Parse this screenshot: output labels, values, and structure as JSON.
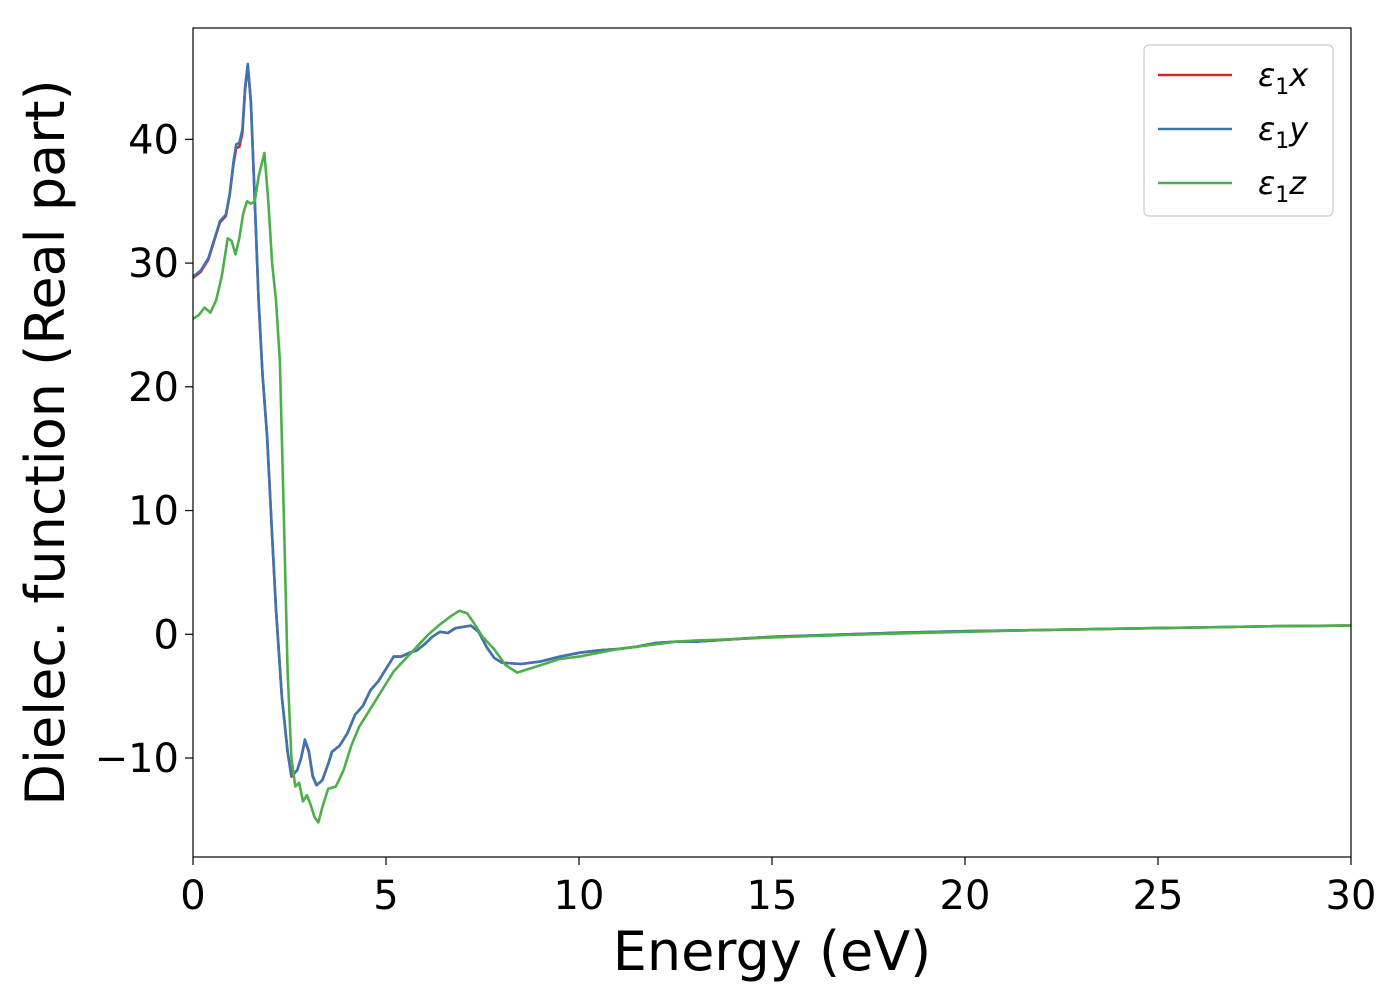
{
  "chart_data": {
    "type": "line",
    "title": "",
    "xlabel": "Energy (eV)",
    "ylabel": "Dielec. function (Real part)",
    "xlim": [
      0,
      30
    ],
    "ylim": [
      -18,
      49
    ],
    "xticks": [
      0,
      5,
      10,
      15,
      20,
      25,
      30
    ],
    "xtick_labels": [
      "0",
      "5",
      "10",
      "15",
      "20",
      "25",
      "30"
    ],
    "yticks": [
      -10,
      0,
      10,
      20,
      30,
      40
    ],
    "ytick_labels": [
      "−10",
      "0",
      "10",
      "20",
      "30",
      "40"
    ],
    "grid": false,
    "legend": {
      "position": "top-right",
      "entries": [
        {
          "prefix": "ε",
          "sub": "1",
          "suffix": "x"
        },
        {
          "prefix": "ε",
          "sub": "1",
          "suffix": "y"
        },
        {
          "prefix": "ε",
          "sub": "1",
          "suffix": "z"
        }
      ]
    },
    "series": [
      {
        "name": "ε1x",
        "color": "#d62728",
        "points": [
          [
            0,
            28.8
          ],
          [
            0.2,
            29.3
          ],
          [
            0.4,
            30.3
          ],
          [
            0.55,
            31.8
          ],
          [
            0.7,
            33.3
          ],
          [
            0.85,
            33.8
          ],
          [
            0.95,
            35.5
          ],
          [
            1.05,
            38.0
          ],
          [
            1.12,
            39.3
          ],
          [
            1.2,
            39.4
          ],
          [
            1.28,
            40.5
          ],
          [
            1.35,
            44.0
          ],
          [
            1.42,
            46.0
          ],
          [
            1.5,
            43.0
          ],
          [
            1.6,
            35.0
          ],
          [
            1.7,
            27.0
          ],
          [
            1.8,
            21.0
          ],
          [
            1.92,
            16.0
          ],
          [
            2.05,
            8.0
          ],
          [
            2.15,
            2.0
          ],
          [
            2.3,
            -5.0
          ],
          [
            2.45,
            -9.5
          ],
          [
            2.55,
            -11.5
          ],
          [
            2.7,
            -11.0
          ],
          [
            2.8,
            -10.0
          ],
          [
            2.9,
            -8.6
          ],
          [
            3.0,
            -9.5
          ],
          [
            3.1,
            -11.5
          ],
          [
            3.2,
            -12.2
          ],
          [
            3.35,
            -11.8
          ],
          [
            3.5,
            -10.5
          ],
          [
            3.6,
            -9.5
          ],
          [
            3.8,
            -9.0
          ],
          [
            4.0,
            -8.0
          ],
          [
            4.2,
            -6.5
          ],
          [
            4.4,
            -5.8
          ],
          [
            4.6,
            -4.5
          ],
          [
            4.8,
            -3.8
          ],
          [
            5.0,
            -2.8
          ],
          [
            5.2,
            -1.8
          ],
          [
            5.4,
            -1.8
          ],
          [
            5.6,
            -1.5
          ],
          [
            5.8,
            -1.3
          ],
          [
            6.0,
            -0.8
          ],
          [
            6.2,
            -0.2
          ],
          [
            6.4,
            0.2
          ],
          [
            6.6,
            0.1
          ],
          [
            6.8,
            0.5
          ],
          [
            7.0,
            0.6
          ],
          [
            7.2,
            0.7
          ],
          [
            7.4,
            0.2
          ],
          [
            7.6,
            -1.0
          ],
          [
            7.8,
            -1.9
          ],
          [
            8.0,
            -2.3
          ],
          [
            8.5,
            -2.4
          ],
          [
            9.0,
            -2.2
          ],
          [
            9.5,
            -1.8
          ],
          [
            10.0,
            -1.5
          ],
          [
            10.5,
            -1.3
          ],
          [
            11.0,
            -1.2
          ],
          [
            11.5,
            -1.0
          ],
          [
            12.0,
            -0.7
          ],
          [
            12.5,
            -0.6
          ],
          [
            13.0,
            -0.6
          ],
          [
            14.0,
            -0.4
          ],
          [
            15.0,
            -0.2
          ],
          [
            16.0,
            -0.1
          ],
          [
            18.0,
            0.1
          ],
          [
            20.0,
            0.25
          ],
          [
            22.0,
            0.35
          ],
          [
            24.0,
            0.45
          ],
          [
            26.0,
            0.55
          ],
          [
            28.0,
            0.65
          ],
          [
            30.0,
            0.7
          ]
        ]
      },
      {
        "name": "ε1y",
        "color": "#3b76b0",
        "points": [
          [
            0,
            28.9
          ],
          [
            0.2,
            29.4
          ],
          [
            0.4,
            30.4
          ],
          [
            0.55,
            31.9
          ],
          [
            0.7,
            33.4
          ],
          [
            0.85,
            33.9
          ],
          [
            0.95,
            35.6
          ],
          [
            1.05,
            38.2
          ],
          [
            1.12,
            39.6
          ],
          [
            1.2,
            39.7
          ],
          [
            1.28,
            40.8
          ],
          [
            1.35,
            44.2
          ],
          [
            1.42,
            46.1
          ],
          [
            1.5,
            43.0
          ],
          [
            1.6,
            35.0
          ],
          [
            1.7,
            27.0
          ],
          [
            1.8,
            21.0
          ],
          [
            1.92,
            16.0
          ],
          [
            2.05,
            8.0
          ],
          [
            2.15,
            2.0
          ],
          [
            2.3,
            -5.0
          ],
          [
            2.45,
            -9.5
          ],
          [
            2.55,
            -11.4
          ],
          [
            2.7,
            -11.0
          ],
          [
            2.8,
            -10.0
          ],
          [
            2.9,
            -8.5
          ],
          [
            3.0,
            -9.4
          ],
          [
            3.1,
            -11.4
          ],
          [
            3.2,
            -12.2
          ],
          [
            3.35,
            -11.8
          ],
          [
            3.5,
            -10.5
          ],
          [
            3.6,
            -9.5
          ],
          [
            3.8,
            -9.0
          ],
          [
            4.0,
            -8.0
          ],
          [
            4.2,
            -6.5
          ],
          [
            4.4,
            -5.8
          ],
          [
            4.6,
            -4.5
          ],
          [
            4.8,
            -3.8
          ],
          [
            5.0,
            -2.8
          ],
          [
            5.2,
            -1.8
          ],
          [
            5.4,
            -1.8
          ],
          [
            5.6,
            -1.5
          ],
          [
            5.8,
            -1.3
          ],
          [
            6.0,
            -0.8
          ],
          [
            6.2,
            -0.2
          ],
          [
            6.4,
            0.2
          ],
          [
            6.6,
            0.1
          ],
          [
            6.8,
            0.5
          ],
          [
            7.0,
            0.6
          ],
          [
            7.2,
            0.7
          ],
          [
            7.4,
            0.2
          ],
          [
            7.6,
            -1.0
          ],
          [
            7.8,
            -1.9
          ],
          [
            8.0,
            -2.3
          ],
          [
            8.5,
            -2.4
          ],
          [
            9.0,
            -2.2
          ],
          [
            9.5,
            -1.8
          ],
          [
            10.0,
            -1.5
          ],
          [
            10.5,
            -1.3
          ],
          [
            11.0,
            -1.2
          ],
          [
            11.5,
            -1.0
          ],
          [
            12.0,
            -0.7
          ],
          [
            12.5,
            -0.6
          ],
          [
            13.0,
            -0.6
          ],
          [
            14.0,
            -0.4
          ],
          [
            15.0,
            -0.2
          ],
          [
            16.0,
            -0.1
          ],
          [
            18.0,
            0.1
          ],
          [
            20.0,
            0.25
          ],
          [
            22.0,
            0.35
          ],
          [
            24.0,
            0.45
          ],
          [
            26.0,
            0.55
          ],
          [
            28.0,
            0.65
          ],
          [
            30.0,
            0.7
          ]
        ]
      },
      {
        "name": "ε1z",
        "color": "#4daf4a",
        "points": [
          [
            0,
            25.5
          ],
          [
            0.15,
            25.8
          ],
          [
            0.3,
            26.4
          ],
          [
            0.45,
            26.0
          ],
          [
            0.6,
            27.0
          ],
          [
            0.75,
            29.0
          ],
          [
            0.9,
            32.0
          ],
          [
            1.0,
            31.8
          ],
          [
            1.1,
            30.7
          ],
          [
            1.2,
            32.0
          ],
          [
            1.3,
            34.0
          ],
          [
            1.4,
            35.0
          ],
          [
            1.5,
            34.8
          ],
          [
            1.6,
            35.0
          ],
          [
            1.7,
            37.0
          ],
          [
            1.85,
            38.9
          ],
          [
            1.95,
            35.0
          ],
          [
            2.05,
            30.0
          ],
          [
            2.15,
            27.0
          ],
          [
            2.25,
            22.0
          ],
          [
            2.35,
            10.0
          ],
          [
            2.45,
            -3.0
          ],
          [
            2.55,
            -10.0
          ],
          [
            2.65,
            -12.3
          ],
          [
            2.75,
            -12.0
          ],
          [
            2.85,
            -13.5
          ],
          [
            2.95,
            -13.0
          ],
          [
            3.05,
            -13.8
          ],
          [
            3.15,
            -14.8
          ],
          [
            3.25,
            -15.2
          ],
          [
            3.35,
            -14.0
          ],
          [
            3.5,
            -12.5
          ],
          [
            3.7,
            -12.3
          ],
          [
            3.9,
            -11.0
          ],
          [
            4.1,
            -9.0
          ],
          [
            4.3,
            -7.5
          ],
          [
            4.6,
            -6.0
          ],
          [
            4.9,
            -4.5
          ],
          [
            5.2,
            -3.0
          ],
          [
            5.5,
            -2.0
          ],
          [
            5.8,
            -1.0
          ],
          [
            6.1,
            0.0
          ],
          [
            6.4,
            0.8
          ],
          [
            6.7,
            1.5
          ],
          [
            6.9,
            1.9
          ],
          [
            7.1,
            1.7
          ],
          [
            7.3,
            0.8
          ],
          [
            7.5,
            -0.2
          ],
          [
            7.8,
            -1.2
          ],
          [
            8.1,
            -2.5
          ],
          [
            8.4,
            -3.1
          ],
          [
            8.7,
            -2.8
          ],
          [
            9.0,
            -2.5
          ],
          [
            9.5,
            -2.0
          ],
          [
            10.0,
            -1.8
          ],
          [
            10.5,
            -1.5
          ],
          [
            11.0,
            -1.2
          ],
          [
            11.5,
            -1.0
          ],
          [
            12.0,
            -0.8
          ],
          [
            12.5,
            -0.6
          ],
          [
            13.0,
            -0.5
          ],
          [
            14.0,
            -0.4
          ],
          [
            15.0,
            -0.25
          ],
          [
            16.0,
            -0.15
          ],
          [
            18.0,
            0.05
          ],
          [
            20.0,
            0.2
          ],
          [
            22.0,
            0.35
          ],
          [
            24.0,
            0.45
          ],
          [
            26.0,
            0.55
          ],
          [
            28.0,
            0.65
          ],
          [
            30.0,
            0.7
          ]
        ]
      }
    ]
  }
}
